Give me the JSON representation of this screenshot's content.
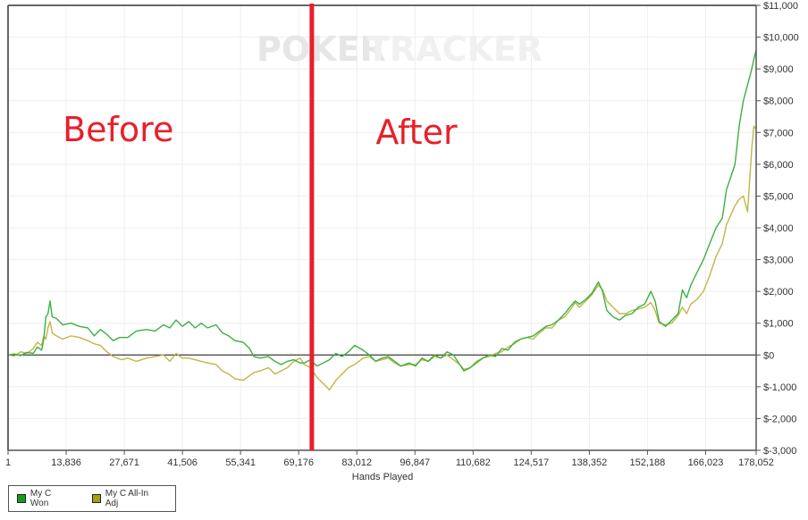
{
  "chart_data": {
    "type": "line",
    "title": "",
    "watermark": "POKERTRACKER",
    "xlabel": "Hands Played",
    "ylabel": "",
    "xlim": [
      1,
      178052
    ],
    "ylim": [
      -3000,
      11000
    ],
    "grid": true,
    "legend_position": "bottom-left",
    "x_ticks": [
      {
        "value": 1,
        "label": "1"
      },
      {
        "value": 13836,
        "label": "13,836"
      },
      {
        "value": 27671,
        "label": "27,671"
      },
      {
        "value": 41506,
        "label": "41,506"
      },
      {
        "value": 55341,
        "label": "55,341"
      },
      {
        "value": 69176,
        "label": "69,176"
      },
      {
        "value": 83012,
        "label": "83,012"
      },
      {
        "value": 96847,
        "label": "96,847"
      },
      {
        "value": 110682,
        "label": "110,682"
      },
      {
        "value": 124517,
        "label": "124,517"
      },
      {
        "value": 138352,
        "label": "138,352"
      },
      {
        "value": 152188,
        "label": "152,188"
      },
      {
        "value": 166023,
        "label": "166,023"
      },
      {
        "value": 178052,
        "label": "178,052"
      }
    ],
    "y_ticks": [
      {
        "value": 11000,
        "label": "$11,000"
      },
      {
        "value": 10000,
        "label": "$10,000"
      },
      {
        "value": 9000,
        "label": "$9,000"
      },
      {
        "value": 8000,
        "label": "$8,000"
      },
      {
        "value": 7000,
        "label": "$7,000"
      },
      {
        "value": 6000,
        "label": "$6,000"
      },
      {
        "value": 5000,
        "label": "$5,000"
      },
      {
        "value": 4000,
        "label": "$4,000"
      },
      {
        "value": 3000,
        "label": "$3,000"
      },
      {
        "value": 2000,
        "label": "$2,000"
      },
      {
        "value": 1000,
        "label": "$1,000"
      },
      {
        "value": 0,
        "label": "$0"
      },
      {
        "value": -1000,
        "label": "$-1,000"
      },
      {
        "value": -2000,
        "label": "$-2,000"
      },
      {
        "value": -3000,
        "label": "$-3,000"
      }
    ],
    "annotations": [
      {
        "text": "Before",
        "type": "label",
        "x_hands": 13000,
        "color": "#e8202a"
      },
      {
        "text": "After",
        "type": "label",
        "x_hands": 87500,
        "color": "#e8202a"
      },
      {
        "type": "vertical-line",
        "x_hands": 72300,
        "color": "#e8202a"
      }
    ],
    "series": [
      {
        "name": "My C Won",
        "color": "#3cb043",
        "legend_color": "#1a9a1a",
        "points": [
          [
            1,
            0
          ],
          [
            1500,
            30
          ],
          [
            3000,
            -20
          ],
          [
            4500,
            80
          ],
          [
            6000,
            50
          ],
          [
            7000,
            250
          ],
          [
            8000,
            150
          ],
          [
            8500,
            500
          ],
          [
            9000,
            1200
          ],
          [
            9500,
            1300
          ],
          [
            10000,
            1700
          ],
          [
            10500,
            1200
          ],
          [
            11500,
            1150
          ],
          [
            13000,
            950
          ],
          [
            15000,
            1000
          ],
          [
            17000,
            900
          ],
          [
            19000,
            850
          ],
          [
            20500,
            600
          ],
          [
            22000,
            800
          ],
          [
            23500,
            650
          ],
          [
            25000,
            450
          ],
          [
            26500,
            550
          ],
          [
            28500,
            550
          ],
          [
            30500,
            750
          ],
          [
            33000,
            800
          ],
          [
            35000,
            750
          ],
          [
            37000,
            950
          ],
          [
            38500,
            850
          ],
          [
            40000,
            1100
          ],
          [
            41500,
            900
          ],
          [
            43000,
            1050
          ],
          [
            44500,
            850
          ],
          [
            46000,
            1000
          ],
          [
            47500,
            850
          ],
          [
            49500,
            950
          ],
          [
            51000,
            700
          ],
          [
            52500,
            600
          ],
          [
            54000,
            450
          ],
          [
            56000,
            400
          ],
          [
            57500,
            200
          ],
          [
            58500,
            -50
          ],
          [
            60000,
            -100
          ],
          [
            62000,
            -50
          ],
          [
            63500,
            -200
          ],
          [
            65000,
            -300
          ],
          [
            66500,
            -200
          ],
          [
            68000,
            -150
          ],
          [
            69500,
            -250
          ],
          [
            70500,
            -250
          ],
          [
            72000,
            -150
          ],
          [
            73500,
            -350
          ],
          [
            75000,
            -250
          ],
          [
            76500,
            -150
          ],
          [
            78000,
            50
          ],
          [
            79500,
            -50
          ],
          [
            81000,
            100
          ],
          [
            82500,
            300
          ],
          [
            84500,
            150
          ],
          [
            86000,
            0
          ],
          [
            87500,
            -200
          ],
          [
            89000,
            -100
          ],
          [
            90500,
            -50
          ],
          [
            92000,
            -200
          ],
          [
            93500,
            -350
          ],
          [
            95500,
            -250
          ],
          [
            97000,
            -350
          ],
          [
            98500,
            -100
          ],
          [
            100000,
            -200
          ],
          [
            101500,
            0
          ],
          [
            103000,
            -100
          ],
          [
            104500,
            100
          ],
          [
            106000,
            0
          ],
          [
            107500,
            -300
          ],
          [
            108500,
            -500
          ],
          [
            110000,
            -400
          ],
          [
            111500,
            -250
          ],
          [
            113000,
            -100
          ],
          [
            114500,
            0
          ],
          [
            116000,
            -50
          ],
          [
            117500,
            200
          ],
          [
            119000,
            150
          ],
          [
            120500,
            400
          ],
          [
            122000,
            500
          ],
          [
            123500,
            550
          ],
          [
            125000,
            600
          ],
          [
            126500,
            750
          ],
          [
            128000,
            900
          ],
          [
            129500,
            950
          ],
          [
            131000,
            1100
          ],
          [
            132500,
            1300
          ],
          [
            134000,
            1550
          ],
          [
            135000,
            1700
          ],
          [
            136000,
            1600
          ],
          [
            137500,
            1750
          ],
          [
            139000,
            1950
          ],
          [
            140500,
            2300
          ],
          [
            141500,
            2000
          ],
          [
            142500,
            1400
          ],
          [
            144000,
            1200
          ],
          [
            145500,
            1100
          ],
          [
            147000,
            1250
          ],
          [
            148500,
            1300
          ],
          [
            150000,
            1500
          ],
          [
            151500,
            1600
          ],
          [
            153000,
            2000
          ],
          [
            154000,
            1700
          ],
          [
            155000,
            1050
          ],
          [
            156500,
            900
          ],
          [
            158000,
            1100
          ],
          [
            159500,
            1300
          ],
          [
            160500,
            2050
          ],
          [
            161500,
            1800
          ],
          [
            162500,
            2200
          ],
          [
            164000,
            2600
          ],
          [
            165500,
            3000
          ],
          [
            167000,
            3500
          ],
          [
            168500,
            4000
          ],
          [
            170000,
            4300
          ],
          [
            171000,
            5200
          ],
          [
            172000,
            5600
          ],
          [
            173000,
            6000
          ],
          [
            174000,
            7200
          ],
          [
            175000,
            8000
          ],
          [
            176000,
            8500
          ],
          [
            177000,
            9000
          ],
          [
            177500,
            9300
          ],
          [
            178052,
            9600
          ]
        ]
      },
      {
        "name": "My C All-In Adj",
        "color": "#c2b547",
        "legend_color": "#a89e10",
        "points": [
          [
            1,
            0
          ],
          [
            1500,
            -30
          ],
          [
            3000,
            100
          ],
          [
            4500,
            50
          ],
          [
            6000,
            200
          ],
          [
            7000,
            400
          ],
          [
            8000,
            300
          ],
          [
            8500,
            600
          ],
          [
            9000,
            500
          ],
          [
            9500,
            850
          ],
          [
            10000,
            1050
          ],
          [
            10500,
            700
          ],
          [
            11500,
            600
          ],
          [
            13000,
            500
          ],
          [
            15000,
            600
          ],
          [
            17000,
            550
          ],
          [
            19000,
            450
          ],
          [
            20500,
            350
          ],
          [
            22000,
            300
          ],
          [
            23500,
            100
          ],
          [
            25000,
            -50
          ],
          [
            27000,
            -150
          ],
          [
            28500,
            -100
          ],
          [
            30500,
            -200
          ],
          [
            33000,
            -100
          ],
          [
            35000,
            -50
          ],
          [
            37000,
            0
          ],
          [
            38500,
            -200
          ],
          [
            40000,
            50
          ],
          [
            41500,
            -100
          ],
          [
            43000,
            -100
          ],
          [
            44500,
            -150
          ],
          [
            46000,
            -200
          ],
          [
            47500,
            -250
          ],
          [
            49500,
            -300
          ],
          [
            51000,
            -500
          ],
          [
            52500,
            -600
          ],
          [
            54000,
            -750
          ],
          [
            56000,
            -800
          ],
          [
            57500,
            -650
          ],
          [
            58500,
            -550
          ],
          [
            60000,
            -500
          ],
          [
            62000,
            -400
          ],
          [
            63500,
            -600
          ],
          [
            65000,
            -500
          ],
          [
            66500,
            -400
          ],
          [
            68000,
            -200
          ],
          [
            69500,
            -100
          ],
          [
            70500,
            -300
          ],
          [
            72000,
            -400
          ],
          [
            73500,
            -700
          ],
          [
            75000,
            -900
          ],
          [
            76500,
            -1100
          ],
          [
            78000,
            -800
          ],
          [
            79500,
            -600
          ],
          [
            81000,
            -400
          ],
          [
            82500,
            -300
          ],
          [
            84500,
            -100
          ],
          [
            86000,
            -50
          ],
          [
            87500,
            -200
          ],
          [
            89000,
            -150
          ],
          [
            90500,
            -100
          ],
          [
            92000,
            -250
          ],
          [
            93500,
            -350
          ],
          [
            95500,
            -300
          ],
          [
            97000,
            -300
          ],
          [
            98500,
            -150
          ],
          [
            100000,
            -200
          ],
          [
            101500,
            -50
          ],
          [
            103000,
            -100
          ],
          [
            104500,
            0
          ],
          [
            106000,
            -150
          ],
          [
            107500,
            -300
          ],
          [
            108500,
            -450
          ],
          [
            110000,
            -400
          ],
          [
            111500,
            -200
          ],
          [
            113000,
            -100
          ],
          [
            114500,
            -50
          ],
          [
            116000,
            50
          ],
          [
            117500,
            100
          ],
          [
            119000,
            250
          ],
          [
            120500,
            350
          ],
          [
            122000,
            500
          ],
          [
            123500,
            550
          ],
          [
            125000,
            500
          ],
          [
            126500,
            700
          ],
          [
            128000,
            850
          ],
          [
            129500,
            850
          ],
          [
            131000,
            1100
          ],
          [
            132500,
            1200
          ],
          [
            134000,
            1450
          ],
          [
            135000,
            1650
          ],
          [
            136000,
            1500
          ],
          [
            137500,
            1700
          ],
          [
            139000,
            1900
          ],
          [
            140500,
            2200
          ],
          [
            141500,
            2050
          ],
          [
            142500,
            1700
          ],
          [
            144000,
            1500
          ],
          [
            145500,
            1300
          ],
          [
            147000,
            1300
          ],
          [
            148500,
            1400
          ],
          [
            150000,
            1450
          ],
          [
            151500,
            1500
          ],
          [
            153000,
            1650
          ],
          [
            154000,
            1400
          ],
          [
            155000,
            1000
          ],
          [
            156500,
            950
          ],
          [
            158000,
            1000
          ],
          [
            159500,
            1250
          ],
          [
            160500,
            1500
          ],
          [
            161500,
            1300
          ],
          [
            162500,
            1600
          ],
          [
            164000,
            1750
          ],
          [
            165500,
            2000
          ],
          [
            167000,
            2500
          ],
          [
            168500,
            3100
          ],
          [
            170000,
            3500
          ],
          [
            171000,
            4100
          ],
          [
            172000,
            4400
          ],
          [
            173000,
            4700
          ],
          [
            174000,
            4900
          ],
          [
            175000,
            5000
          ],
          [
            176000,
            4500
          ],
          [
            177000,
            6500
          ],
          [
            177500,
            7200
          ],
          [
            178052,
            7100
          ]
        ]
      }
    ]
  },
  "legend": {
    "items": [
      {
        "label": "My C Won",
        "color": "#1a9a1a"
      },
      {
        "label": "My C All-In Adj",
        "color": "#a89e10"
      }
    ]
  }
}
